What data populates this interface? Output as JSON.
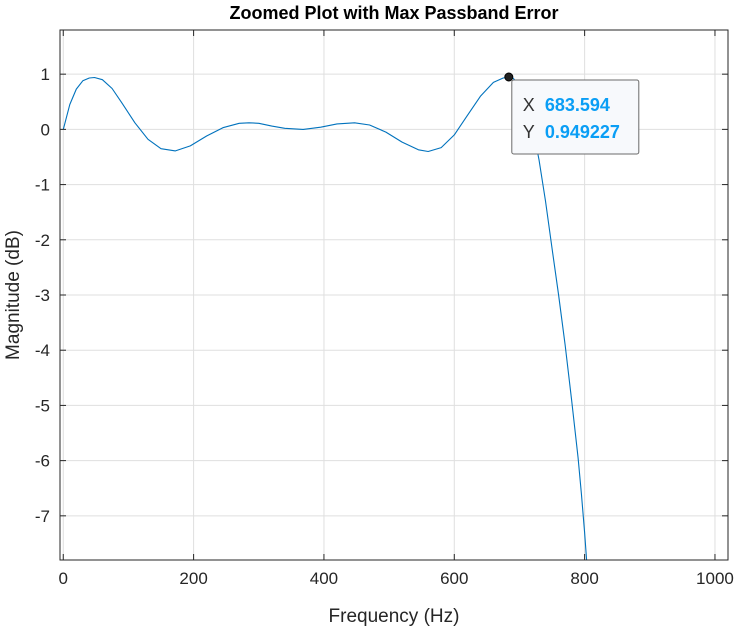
{
  "chart_data": {
    "type": "line",
    "title": "Zoomed Plot with Max Passband Error",
    "xlabel": "Frequency (Hz)",
    "ylabel": "Magnitude (dB)",
    "xlim": [
      -5,
      1020
    ],
    "ylim": [
      -7.8,
      1.8
    ],
    "xticks": [
      0,
      200,
      400,
      600,
      800,
      1000
    ],
    "yticks": [
      -7,
      -6,
      -5,
      -4,
      -3,
      -2,
      -1,
      0,
      1
    ],
    "grid": true,
    "series": [
      {
        "color": "#0072bd",
        "x": [
          0,
          10,
          20,
          30,
          40,
          48,
          60,
          75,
          90,
          110,
          130,
          150,
          172,
          195,
          220,
          245,
          270,
          285,
          300,
          320,
          340,
          368,
          395,
          420,
          447,
          470,
          495,
          520,
          545,
          560,
          580,
          600,
          620,
          640,
          660,
          675,
          683.594,
          690,
          700,
          710,
          720,
          730,
          740,
          750,
          760,
          770,
          780,
          790,
          795,
          800,
          803
        ],
        "y": [
          0,
          0.45,
          0.73,
          0.88,
          0.93,
          0.94,
          0.9,
          0.74,
          0.48,
          0.12,
          -0.18,
          -0.35,
          -0.39,
          -0.3,
          -0.12,
          0.03,
          0.11,
          0.12,
          0.11,
          0.06,
          0.02,
          0.0,
          0.04,
          0.1,
          0.12,
          0.08,
          -0.05,
          -0.23,
          -0.37,
          -0.4,
          -0.33,
          -0.1,
          0.25,
          0.6,
          0.85,
          0.93,
          0.949,
          0.93,
          0.8,
          0.52,
          0.05,
          -0.55,
          -1.3,
          -2.15,
          -3.0,
          -3.9,
          -4.9,
          -5.95,
          -6.6,
          -7.3,
          -7.8
        ]
      }
    ],
    "datatip": {
      "x_key": "X",
      "x_value": "683.594",
      "y_key": "Y",
      "y_value": "0.949227",
      "x": 683.594,
      "y": 0.949227
    }
  }
}
